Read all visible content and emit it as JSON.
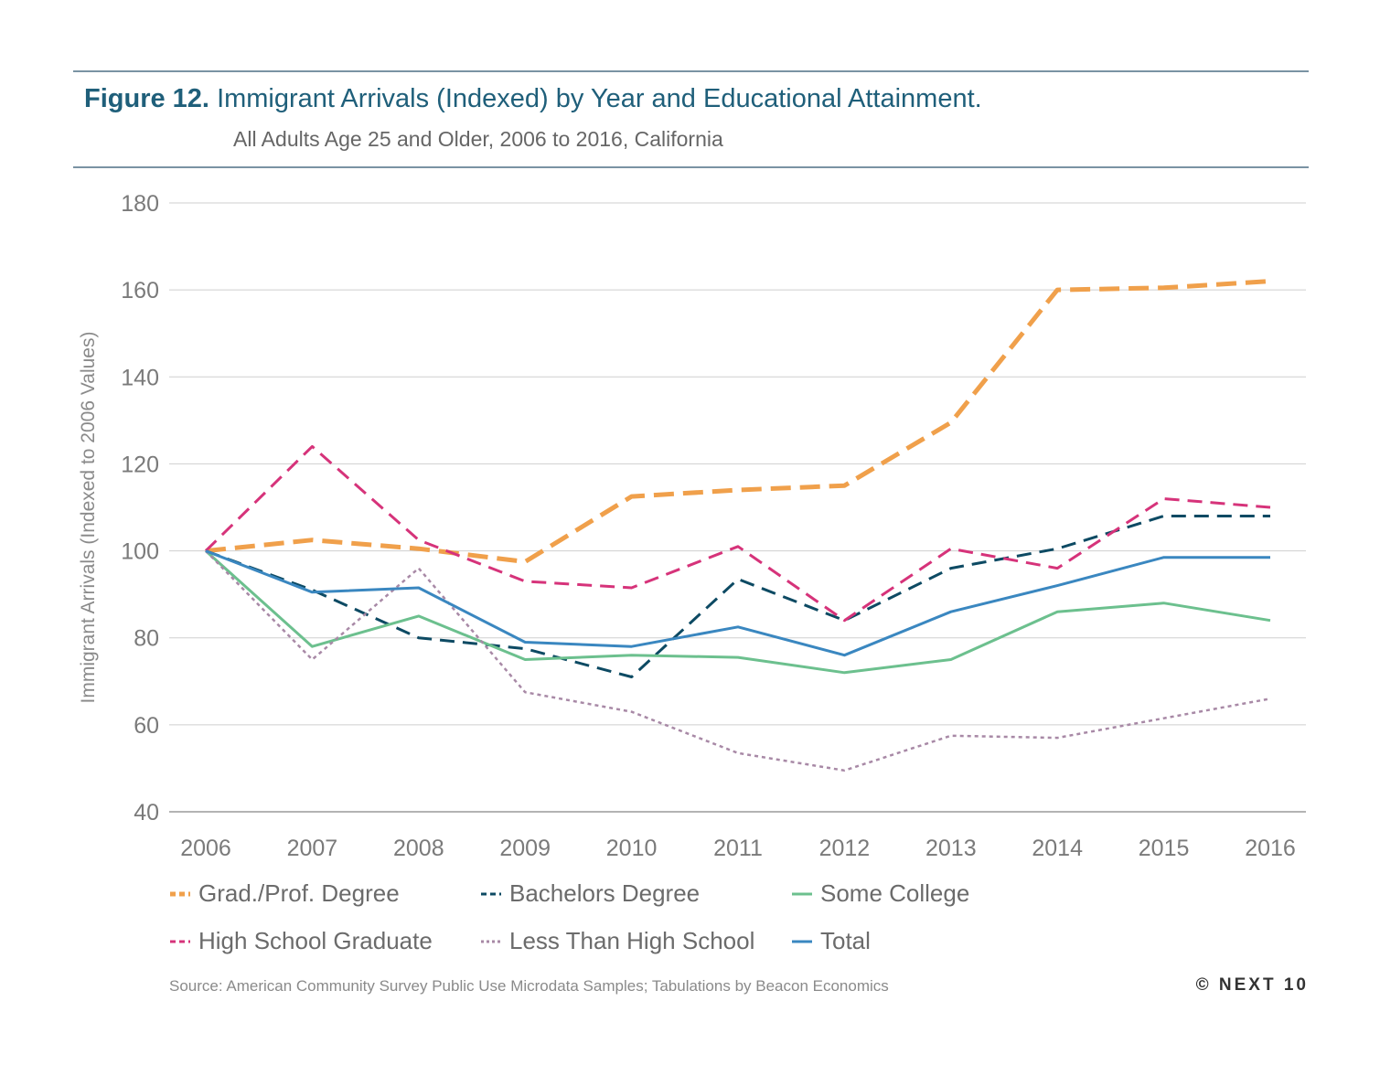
{
  "header": {
    "figure_label": "Figure 12.",
    "title": "Immigrant Arrivals (Indexed) by Year and Educational Attainment.",
    "subtitle": "All Adults Age 25 and Older, 2006 to 2016, California"
  },
  "footer": {
    "source": "Source: American Community Survey Public Use Microdata Samples; Tabulations by Beacon Economics",
    "brand": "© NEXT 10"
  },
  "chart_data": {
    "type": "line",
    "ylabel": "Immigrant Arrivals (Indexed to 2006 Values)",
    "xlabel": "",
    "ylim": [
      40,
      180
    ],
    "yticks": [
      40,
      60,
      80,
      100,
      120,
      140,
      160,
      180
    ],
    "grid": true,
    "legend_position": "bottom",
    "x": [
      "2006",
      "2007",
      "2008",
      "2009",
      "2010",
      "2011",
      "2012",
      "2013",
      "2014",
      "2015",
      "2016"
    ],
    "series": [
      {
        "name": "Grad./Prof. Degree",
        "color": "#f0a04b",
        "style": "dashed-thick",
        "values": [
          100,
          102.5,
          100.5,
          97.5,
          112.5,
          114,
          115,
          129.5,
          160,
          160.5,
          162
        ]
      },
      {
        "name": "Bachelors Degree",
        "color": "#0d4a63",
        "style": "dashed",
        "values": [
          100,
          91,
          80,
          77.5,
          71,
          93.5,
          84,
          96,
          100.5,
          108,
          108
        ]
      },
      {
        "name": "Some College",
        "color": "#6cc08e",
        "style": "solid",
        "values": [
          100,
          78,
          85,
          75,
          76,
          75.5,
          72,
          75,
          86,
          88,
          84
        ]
      },
      {
        "name": "High School Graduate",
        "color": "#d6337a",
        "style": "dashed",
        "values": [
          100,
          124,
          102.5,
          93,
          91.5,
          101,
          84,
          100.5,
          96,
          112,
          110
        ]
      },
      {
        "name": "Less Than High School",
        "color": "#a889a6",
        "style": "dotted",
        "values": [
          100,
          75,
          96,
          67.5,
          63,
          53.5,
          49.5,
          57.5,
          57,
          61.5,
          66
        ]
      },
      {
        "name": "Total",
        "color": "#3a87c0",
        "style": "solid",
        "values": [
          100,
          90.5,
          91.5,
          79,
          78,
          82.5,
          76,
          86,
          92,
          98.5,
          98.5
        ]
      }
    ]
  }
}
